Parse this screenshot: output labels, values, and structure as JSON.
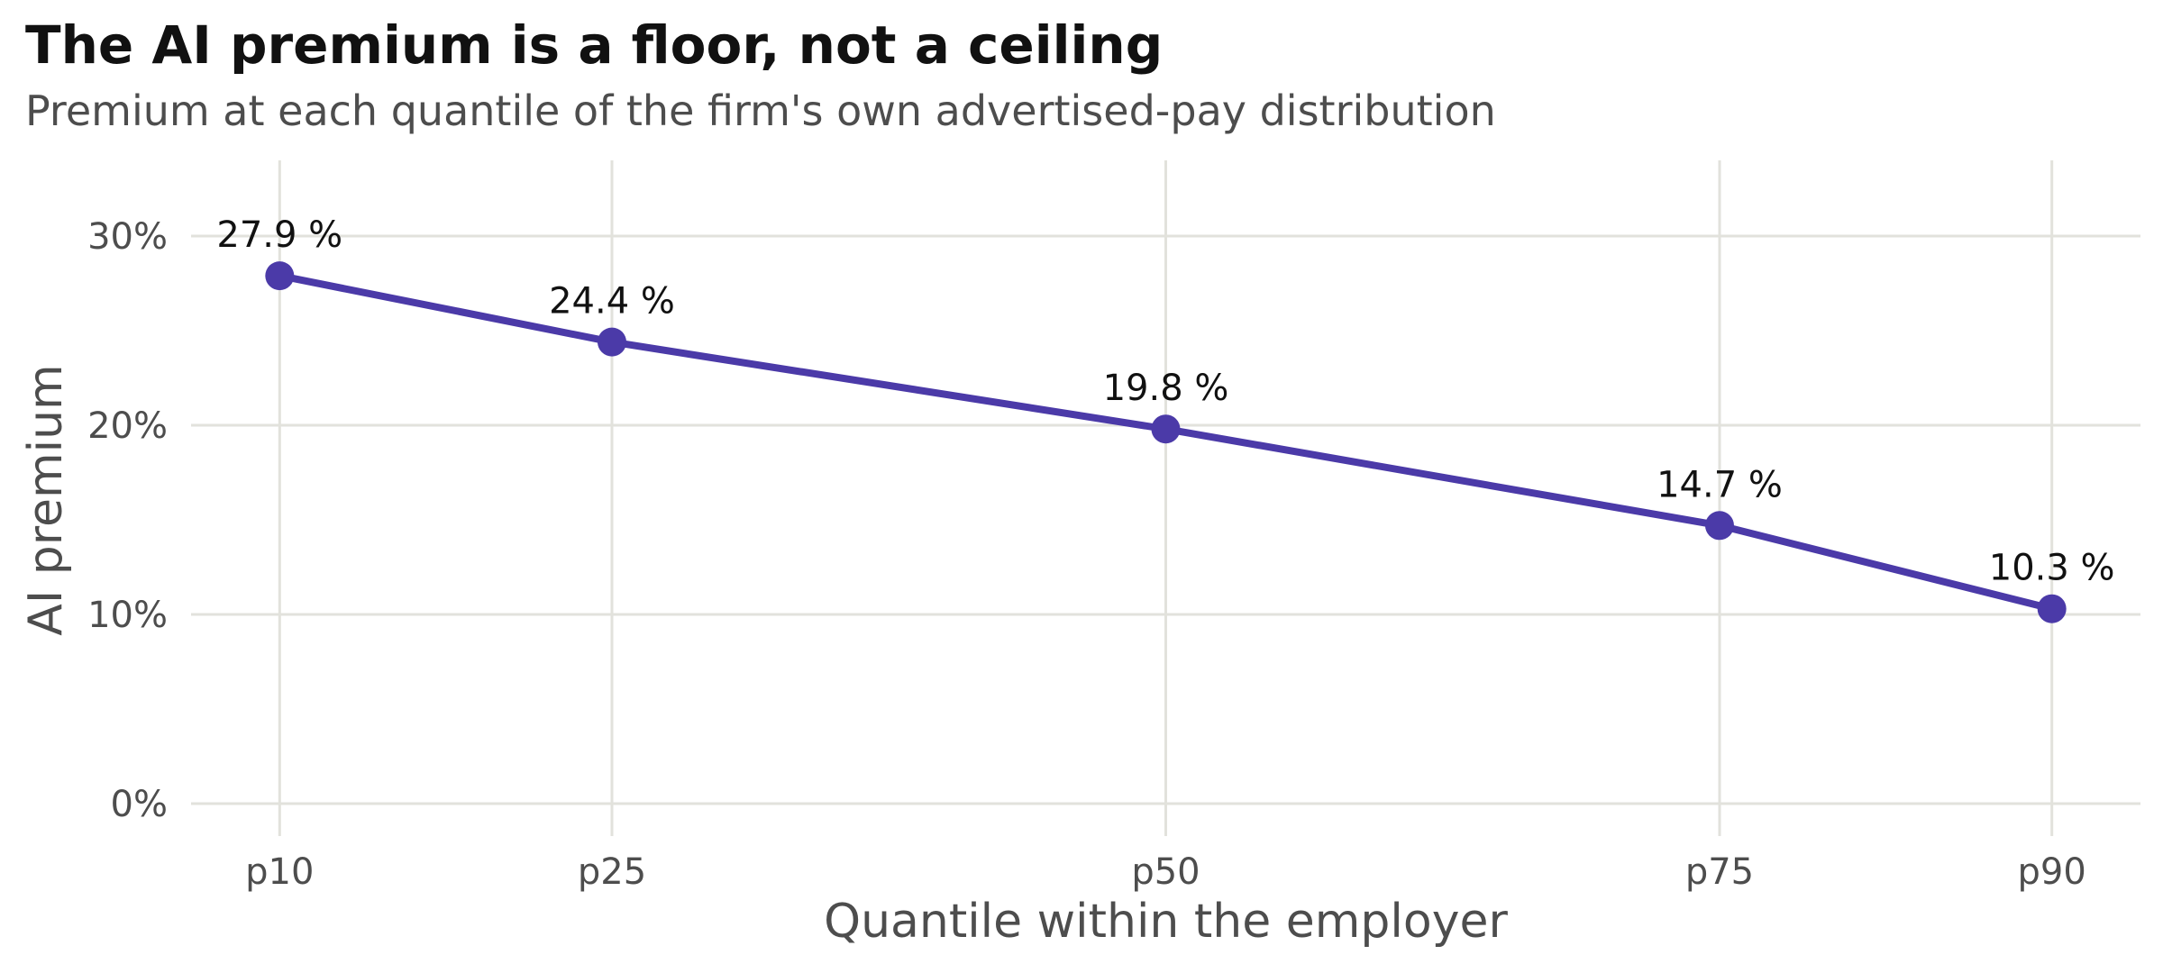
{
  "chart_data": {
    "type": "line",
    "title": "The AI premium is a floor, not a ceiling",
    "subtitle": "Premium at each quantile of the firm's own advertised-pay distribution",
    "xlabel": "Quantile within the employer",
    "ylabel": "AI premium",
    "x_scale": "quantile percentile (numeric positions 10, 25, 50, 75, 90)",
    "x": [
      10,
      25,
      50,
      75,
      90
    ],
    "categories": [
      "p10",
      "p25",
      "p50",
      "p75",
      "p90"
    ],
    "series": [
      {
        "values": [
          27.9,
          24.4,
          19.8,
          14.7,
          10.3
        ],
        "data_labels": [
          "27.9 %",
          "24.4 %",
          "19.8 %",
          "14.7 %",
          "10.3 %"
        ],
        "color": "#4b3aa8"
      }
    ],
    "ylim": [
      0,
      34
    ],
    "xlim": [
      6,
      94
    ],
    "yticks": [
      0,
      10,
      20,
      30
    ],
    "ytick_labels": [
      "0%",
      "10%",
      "20%",
      "30%"
    ],
    "grid": true,
    "grid_color": "#e2e2dc",
    "legend": "none"
  }
}
